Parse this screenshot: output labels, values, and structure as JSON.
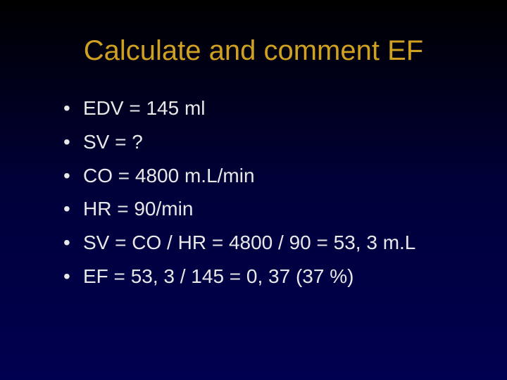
{
  "slide": {
    "title": "Calculate and comment EF",
    "title_color": "#d0a020",
    "title_fontsize": 40,
    "body_color": "#e8e8e8",
    "body_fontsize": 28,
    "background_gradient": [
      "#000000",
      "#00003a",
      "#000050"
    ],
    "bullets": [
      "EDV = 145 ml",
      "SV = ?",
      "CO = 4800 m.L/min",
      "HR = 90/min",
      "SV = CO / HR = 4800 / 90 = 53, 3 m.L",
      "EF = 53, 3 / 145 = 0, 37 (37 %)"
    ]
  }
}
